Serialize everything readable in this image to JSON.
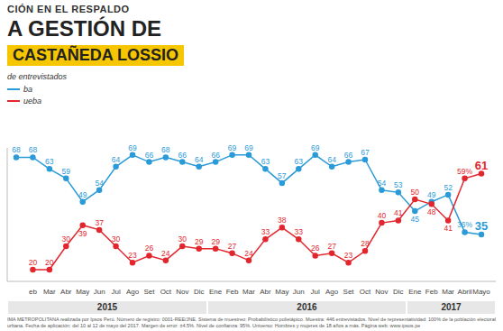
{
  "chart_data": {
    "type": "line",
    "title": [
      "CIÓN EN EL RESPALDO",
      "A GESTIÓN DE",
      "CASTAÑEDA LOSSIO"
    ],
    "subtitle": "de entrevistados",
    "categories": [
      null,
      "eb",
      "Mar",
      "Abr",
      "May",
      "Jun",
      "Jul",
      "Ago",
      "Set",
      "Oct",
      "Nov",
      "Dic",
      "Ene",
      "Feb",
      "Mar",
      "Abr",
      "May",
      "Jun",
      "Jul",
      "Ago",
      "Set",
      "Oct",
      "Nov",
      "Dic",
      "Ene",
      "Feb",
      "Mar",
      "Abril",
      "Mayo"
    ],
    "series": [
      {
        "name": "ba",
        "color": "#2b9ad8",
        "marker": "circle",
        "line_style": "solid",
        "values": [
          68,
          68,
          63,
          59,
          49,
          54,
          64,
          69,
          66,
          68,
          66,
          64,
          66,
          69,
          69,
          63,
          57,
          63,
          69,
          64,
          66,
          67,
          54,
          53,
          45,
          49,
          52,
          36,
          35
        ],
        "value_labels": [
          "68",
          "68",
          "63",
          "59",
          "49",
          "54",
          "64",
          "69",
          "66",
          "68",
          "66",
          "64",
          "66",
          "69",
          "69",
          "63",
          "57",
          "63",
          "69",
          "64",
          "66",
          "67",
          "54",
          "53",
          "45",
          "49",
          "52",
          "36%",
          "35"
        ]
      },
      {
        "name": "ueba",
        "color": "#e3262d",
        "marker": "circle",
        "line_style": "solid",
        "values": [
          null,
          20,
          20,
          30,
          39,
          37,
          30,
          23,
          26,
          24,
          30,
          29,
          29,
          27,
          24,
          33,
          38,
          33,
          26,
          27,
          23,
          28,
          40,
          41,
          50,
          48,
          41,
          59,
          61
        ],
        "value_labels": [
          null,
          "20",
          "20",
          "30",
          "39",
          "37",
          "30",
          "23",
          "26",
          "24",
          "30",
          "29",
          "29",
          "27",
          "24",
          "33",
          "38",
          "33",
          "26",
          "27",
          "23",
          "28",
          "40",
          "41",
          "50",
          "48",
          "41",
          "59%",
          "61"
        ]
      }
    ],
    "ylim": [
      15,
      72
    ],
    "tick_labels": "x",
    "grid": false,
    "data_labels": true,
    "legend": "top-left",
    "annotations": {
      "years": [
        "2015",
        "2016",
        "2017"
      ],
      "source": "IMA METROPOLITANA realizada por Ipsos Perú. Número de registro: 0001-REE/JNE. Sistema de muestreo: Probabilístico polietápico. Muestra: 446 entrevistados. Nivel de representatividad: 100% de la población electoral urbana. Fecha de aplicación: del 10 al 12 de mayo del 2017. Margen de error: ±4.5%. Nivel de confianza: 95%. Universo: Hombres y mujeres de 18 años a más. Página web: www.ipsos.pe"
    }
  }
}
